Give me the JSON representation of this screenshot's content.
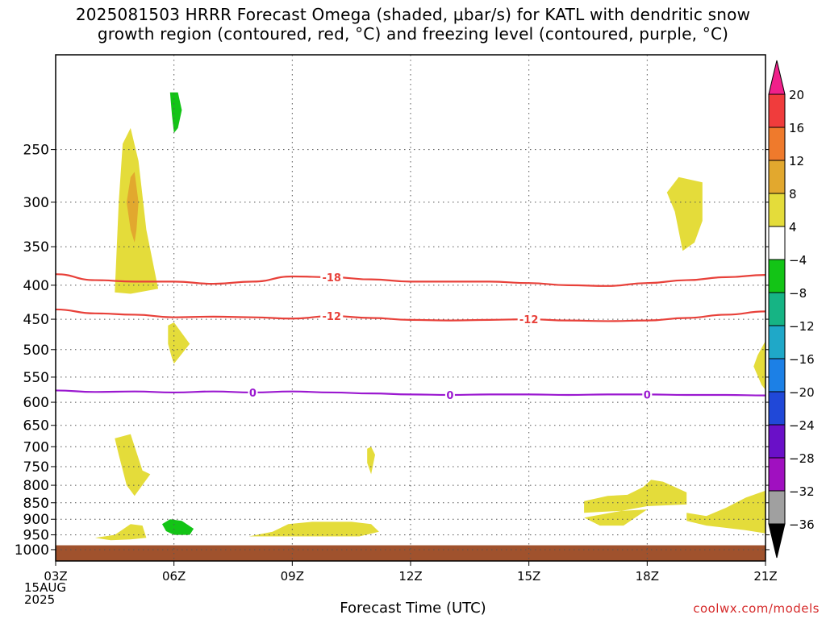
{
  "chart_data": {
    "type": "heatmap",
    "title_lines": [
      "2025081503 HRRR Forecast Omega (shaded, μbar/s) for KATL with dendritic snow",
      "growth region (contoured, red, °C) and freezing level (contoured, purple, °C)"
    ],
    "xlabel": "Forecast Time (UTC)",
    "x_ticks": [
      "03Z",
      "06Z",
      "09Z",
      "12Z",
      "15Z",
      "18Z",
      "21Z"
    ],
    "x_tick_hours": [
      3,
      6,
      9,
      12,
      15,
      18,
      21
    ],
    "x_start_date": [
      "15AUG",
      "2025"
    ],
    "xlim_hours": [
      3,
      21
    ],
    "y_ticks": [
      250,
      300,
      350,
      400,
      450,
      500,
      550,
      600,
      650,
      700,
      750,
      800,
      850,
      900,
      950,
      1000
    ],
    "ylim_hpa": [
      180,
      1040
    ],
    "y_scale": "log-pressure",
    "grid": true,
    "colorbar": {
      "labels": [
        "20",
        "16",
        "12",
        "8",
        "4",
        "−4",
        "−8",
        "−12",
        "−16",
        "−20",
        "−24",
        "−28",
        "−32",
        "−36"
      ],
      "colors": [
        "#f0208a",
        "#f03c3c",
        "#ef7a2c",
        "#e2a82e",
        "#e4dc3a",
        "#ffffff",
        "#13c416",
        "#16b484",
        "#1fa8c8",
        "#1c80e6",
        "#2048d8",
        "#6a10c8",
        "#a010c0",
        "#a0a0a0",
        "#000000"
      ]
    },
    "omega_regions": [
      {
        "color": "#e4dc3a",
        "points": [
          [
            4.5,
            410
          ],
          [
            4.6,
            300
          ],
          [
            4.7,
            245
          ],
          [
            4.9,
            232
          ],
          [
            5.1,
            260
          ],
          [
            5.3,
            330
          ],
          [
            5.6,
            405
          ],
          [
            4.9,
            412
          ]
        ]
      },
      {
        "color": "#e2a82e",
        "points": [
          [
            4.8,
            300
          ],
          [
            4.9,
            275
          ],
          [
            5.0,
            270
          ],
          [
            5.1,
            300
          ],
          [
            5.05,
            330
          ],
          [
            5.0,
            345
          ],
          [
            4.9,
            330
          ]
        ]
      },
      {
        "color": "#13c416",
        "points": [
          [
            5.9,
            205
          ],
          [
            6.1,
            205
          ],
          [
            6.2,
            218
          ],
          [
            6.1,
            232
          ],
          [
            6.0,
            236
          ],
          [
            5.95,
            222
          ]
        ]
      },
      {
        "color": "#e4dc3a",
        "points": [
          [
            5.85,
            460
          ],
          [
            6.0,
            455
          ],
          [
            6.4,
            490
          ],
          [
            6.0,
            525
          ],
          [
            5.95,
            515
          ],
          [
            5.85,
            490
          ]
        ]
      },
      {
        "color": "#e4dc3a",
        "points": [
          [
            18.5,
            290
          ],
          [
            18.8,
            275
          ],
          [
            19.4,
            280
          ],
          [
            19.4,
            320
          ],
          [
            19.2,
            345
          ],
          [
            18.9,
            355
          ],
          [
            18.7,
            310
          ]
        ]
      },
      {
        "color": "#e4dc3a",
        "points": [
          [
            21.0,
            485
          ],
          [
            20.8,
            510
          ],
          [
            20.7,
            530
          ],
          [
            20.9,
            565
          ],
          [
            21.0,
            575
          ]
        ]
      },
      {
        "color": "#e4dc3a",
        "points": [
          [
            4.5,
            680
          ],
          [
            4.9,
            670
          ],
          [
            5.2,
            760
          ],
          [
            5.4,
            770
          ],
          [
            5.0,
            830
          ],
          [
            4.8,
            800
          ],
          [
            4.6,
            720
          ]
        ]
      },
      {
        "color": "#e4dc3a",
        "points": [
          [
            10.9,
            705
          ],
          [
            11.0,
            700
          ],
          [
            11.1,
            720
          ],
          [
            11.0,
            770
          ],
          [
            10.9,
            740
          ]
        ]
      },
      {
        "color": "#e4dc3a",
        "points": [
          [
            4.0,
            960
          ],
          [
            4.5,
            950
          ],
          [
            4.9,
            915
          ],
          [
            5.2,
            920
          ],
          [
            5.3,
            960
          ],
          [
            4.9,
            965
          ],
          [
            4.4,
            968
          ]
        ]
      },
      {
        "color": "#13c416",
        "points": [
          [
            5.7,
            915
          ],
          [
            5.9,
            900
          ],
          [
            6.2,
            905
          ],
          [
            6.5,
            930
          ],
          [
            6.4,
            950
          ],
          [
            6.0,
            950
          ],
          [
            5.8,
            938
          ]
        ]
      },
      {
        "color": "#e4dc3a",
        "points": [
          [
            7.9,
            955
          ],
          [
            8.5,
            940
          ],
          [
            8.9,
            915
          ],
          [
            9.5,
            908
          ],
          [
            10.5,
            908
          ],
          [
            11.0,
            915
          ],
          [
            11.2,
            940
          ],
          [
            10.7,
            955
          ],
          [
            9.3,
            955
          ],
          [
            8.3,
            955
          ]
        ]
      },
      {
        "color": "#e4dc3a",
        "points": [
          [
            16.4,
            845
          ],
          [
            17.0,
            830
          ],
          [
            17.5,
            827
          ],
          [
            17.9,
            805
          ],
          [
            18.1,
            785
          ],
          [
            18.4,
            790
          ],
          [
            19.0,
            820
          ],
          [
            19.0,
            855
          ],
          [
            18.0,
            860
          ],
          [
            16.4,
            895
          ],
          [
            16.8,
            920
          ],
          [
            17.4,
            920
          ],
          [
            18.0,
            870
          ],
          [
            16.4,
            880
          ]
        ]
      },
      {
        "color": "#e4dc3a",
        "points": [
          [
            19.0,
            880
          ],
          [
            19.5,
            890
          ],
          [
            20.0,
            865
          ],
          [
            20.5,
            835
          ],
          [
            21.0,
            815
          ],
          [
            21.0,
            945
          ],
          [
            20.5,
            935
          ],
          [
            19.5,
            920
          ],
          [
            19.0,
            905
          ]
        ]
      }
    ],
    "surface": {
      "color": "#a0522d",
      "from_hpa": 985
    },
    "contours": [
      {
        "label": "-18",
        "color": "#e8413a",
        "x": [
          3,
          4,
          5,
          6,
          7,
          8,
          9,
          10,
          11,
          12,
          13,
          14,
          15,
          16,
          17,
          18,
          19,
          20,
          21
        ],
        "y": [
          385,
          393,
          395,
          395,
          398,
          395,
          388,
          389,
          392,
          395,
          395,
          395,
          397,
          400,
          401,
          397,
          393,
          389,
          386
        ],
        "label_at": [
          10
        ]
      },
      {
        "label": "-12",
        "color": "#e8413a",
        "x": [
          3,
          4,
          5,
          6,
          7,
          8,
          9,
          10,
          11,
          12,
          13,
          14,
          15,
          16,
          17,
          18,
          19,
          20,
          21
        ],
        "y": [
          435,
          441,
          443,
          447,
          446,
          447,
          449,
          445,
          448,
          451,
          452,
          451,
          450,
          452,
          453,
          452,
          448,
          443,
          438
        ],
        "label_at": [
          10,
          15
        ]
      },
      {
        "label": "0",
        "color": "#9b19d0",
        "x": [
          3,
          4,
          5,
          6,
          7,
          8,
          9,
          10,
          11,
          12,
          13,
          14,
          15,
          16,
          17,
          18,
          19,
          20,
          21
        ],
        "y": [
          576,
          579,
          578,
          580,
          578,
          580,
          578,
          580,
          582,
          584,
          585,
          584,
          584,
          585,
          584,
          584,
          585,
          585,
          586
        ],
        "label_at": [
          8,
          13,
          18
        ]
      }
    ]
  },
  "credit": "coolwx.com/models"
}
